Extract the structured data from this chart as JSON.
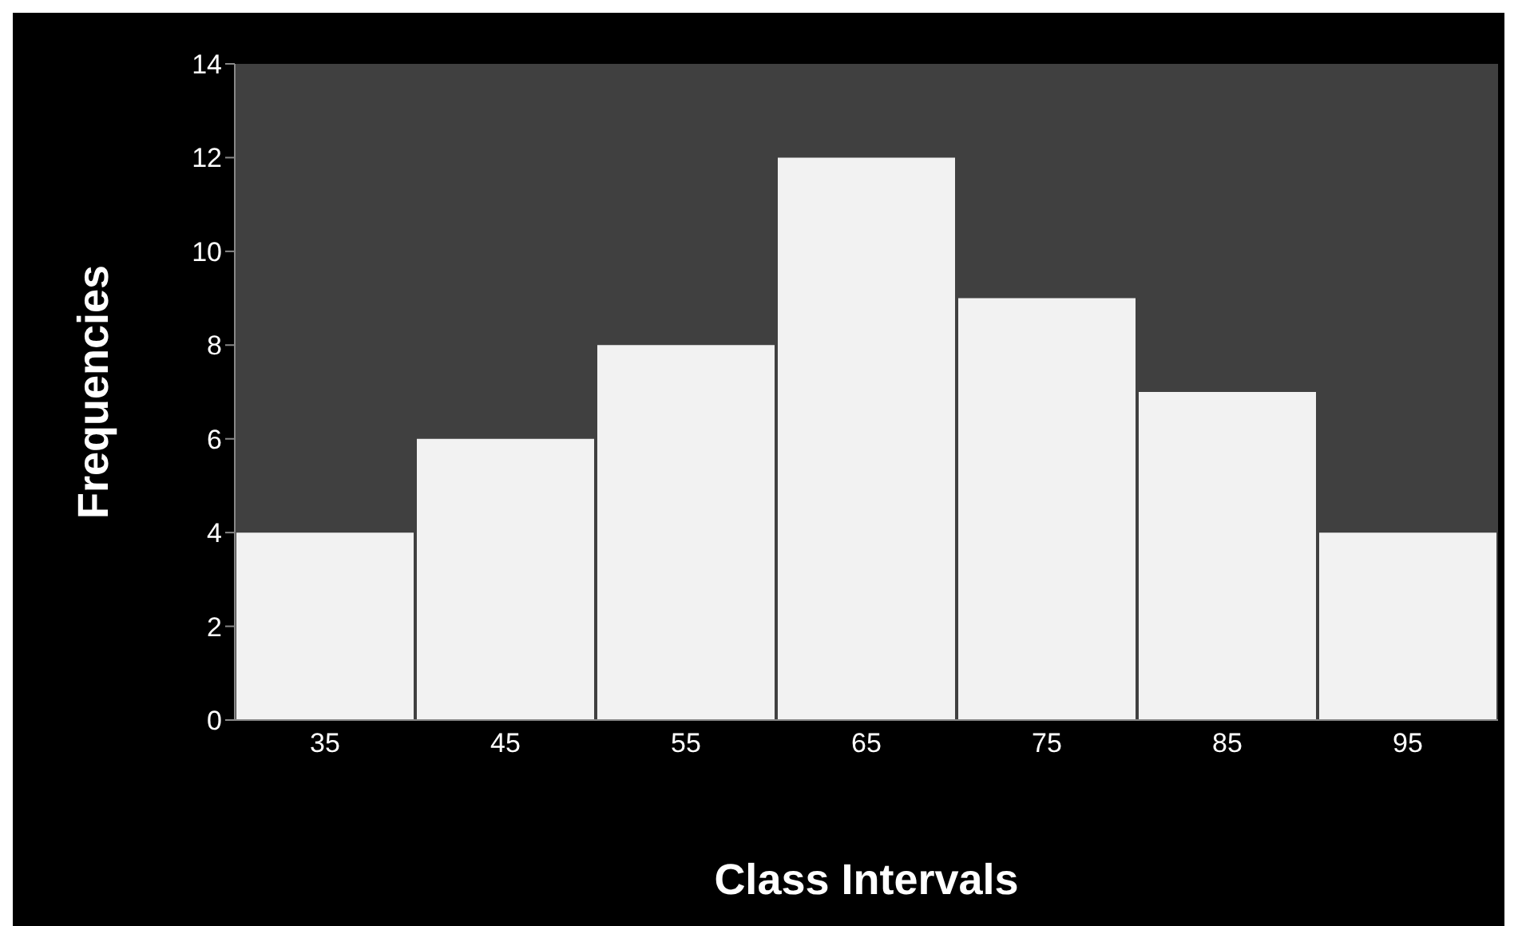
{
  "chart_data": {
    "type": "bar",
    "xlabel": "Class Intervals",
    "ylabel": "Frequencies",
    "categories": [
      "35",
      "45",
      "55",
      "65",
      "75",
      "85",
      "95"
    ],
    "values": [
      4,
      6,
      8,
      12,
      9,
      7,
      4
    ],
    "color": "#f2f2f2",
    "ylim": [
      0,
      14
    ],
    "yticks": [
      0,
      2,
      4,
      6,
      8,
      10,
      12,
      14
    ]
  }
}
